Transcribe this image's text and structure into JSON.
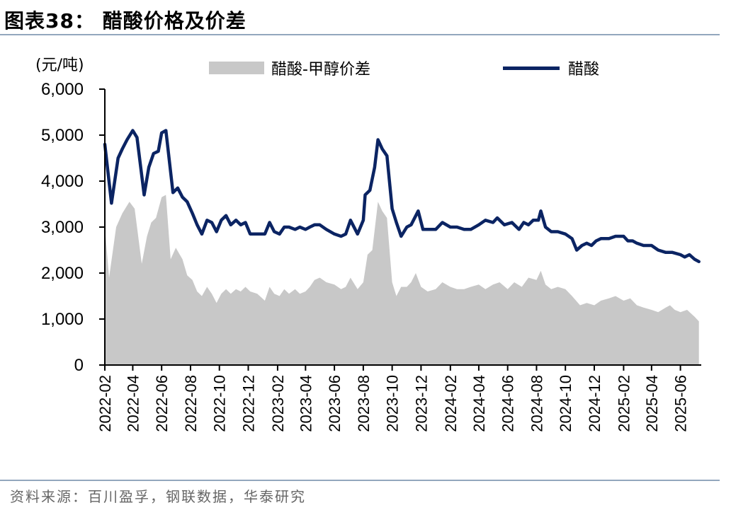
{
  "header": {
    "title": "图表38：  醋酸价格及价差"
  },
  "footer": {
    "source": "资料来源：百川盈孚，钢联数据，华泰研究"
  },
  "colors": {
    "line": "#0b2463",
    "area": "#c8c8c8",
    "rule": "#93a7bd"
  },
  "chart_data": {
    "type": "line",
    "ylabel": "(元/吨)",
    "ylim": [
      0,
      6000
    ],
    "y_ticks": [
      "0",
      "1,000",
      "2,000",
      "3,000",
      "4,000",
      "5,000",
      "6,000"
    ],
    "x_ticks": [
      "2022-02",
      "2022-04",
      "2022-06",
      "2022-08",
      "2022-10",
      "2022-12",
      "2023-02",
      "2023-04",
      "2023-06",
      "2023-08",
      "2023-10",
      "2023-12",
      "2024-02",
      "2024-04",
      "2024-06",
      "2024-08",
      "2024-10",
      "2024-12",
      "2025-02",
      "2025-04",
      "2025-06"
    ],
    "x_start": "2022-02",
    "legend_position": "top",
    "series": [
      {
        "name": "醋酸-甲醇价差",
        "kind": "area",
        "color": "#c8c8c8",
        "points": [
          [
            "2022-02",
            3000
          ],
          [
            "2022-02-10",
            1900
          ],
          [
            "2022-02-25",
            3000
          ],
          [
            "2022-03-10",
            3300
          ],
          [
            "2022-03-25",
            3550
          ],
          [
            "2022-04-05",
            3400
          ],
          [
            "2022-04-20",
            2200
          ],
          [
            "2022-05-01",
            2800
          ],
          [
            "2022-05-10",
            3100
          ],
          [
            "2022-05-20",
            3200
          ],
          [
            "2022-06-01",
            3650
          ],
          [
            "2022-06-10",
            3700
          ],
          [
            "2022-06-20",
            2300
          ],
          [
            "2022-07-01",
            2550
          ],
          [
            "2022-07-15",
            2300
          ],
          [
            "2022-07-25",
            1950
          ],
          [
            "2022-08-05",
            1850
          ],
          [
            "2022-08-15",
            1600
          ],
          [
            "2022-08-25",
            1500
          ],
          [
            "2022-09-05",
            1700
          ],
          [
            "2022-09-15",
            1550
          ],
          [
            "2022-09-25",
            1350
          ],
          [
            "2022-10-05",
            1550
          ],
          [
            "2022-10-15",
            1650
          ],
          [
            "2022-10-25",
            1550
          ],
          [
            "2022-11-05",
            1650
          ],
          [
            "2022-11-15",
            1600
          ],
          [
            "2022-11-25",
            1700
          ],
          [
            "2022-12-05",
            1600
          ],
          [
            "2022-12-20",
            1550
          ],
          [
            "2023-01-05",
            1400
          ],
          [
            "2023-01-15",
            1700
          ],
          [
            "2023-01-25",
            1550
          ],
          [
            "2023-02-05",
            1500
          ],
          [
            "2023-02-15",
            1650
          ],
          [
            "2023-02-25",
            1550
          ],
          [
            "2023-03-10",
            1650
          ],
          [
            "2023-03-20",
            1550
          ],
          [
            "2023-04-01",
            1600
          ],
          [
            "2023-04-10",
            1700
          ],
          [
            "2023-04-20",
            1850
          ],
          [
            "2023-05-01",
            1900
          ],
          [
            "2023-05-15",
            1800
          ],
          [
            "2023-06-01",
            1750
          ],
          [
            "2023-06-15",
            1650
          ],
          [
            "2023-06-25",
            1700
          ],
          [
            "2023-07-05",
            1900
          ],
          [
            "2023-07-20",
            1650
          ],
          [
            "2023-08-01",
            1800
          ],
          [
            "2023-08-10",
            2400
          ],
          [
            "2023-08-20",
            2500
          ],
          [
            "2023-09-01",
            3550
          ],
          [
            "2023-09-10",
            3350
          ],
          [
            "2023-09-20",
            3200
          ],
          [
            "2023-10-01",
            1800
          ],
          [
            "2023-10-10",
            1500
          ],
          [
            "2023-10-20",
            1700
          ],
          [
            "2023-11-01",
            1700
          ],
          [
            "2023-11-10",
            1800
          ],
          [
            "2023-11-20",
            2000
          ],
          [
            "2023-12-01",
            1700
          ],
          [
            "2023-12-15",
            1600
          ],
          [
            "2024-01-01",
            1650
          ],
          [
            "2024-01-15",
            1800
          ],
          [
            "2024-02-01",
            1700
          ],
          [
            "2024-02-15",
            1650
          ],
          [
            "2024-03-01",
            1650
          ],
          [
            "2024-03-15",
            1700
          ],
          [
            "2024-04-01",
            1750
          ],
          [
            "2024-04-15",
            1650
          ],
          [
            "2024-05-01",
            1750
          ],
          [
            "2024-05-15",
            1800
          ],
          [
            "2024-06-01",
            1650
          ],
          [
            "2024-06-15",
            1800
          ],
          [
            "2024-07-01",
            1700
          ],
          [
            "2024-07-15",
            1900
          ],
          [
            "2024-08-01",
            1850
          ],
          [
            "2024-08-10",
            2050
          ],
          [
            "2024-08-20",
            1750
          ],
          [
            "2024-09-01",
            1650
          ],
          [
            "2024-09-15",
            1700
          ],
          [
            "2024-10-01",
            1650
          ],
          [
            "2024-10-15",
            1500
          ],
          [
            "2024-11-01",
            1300
          ],
          [
            "2024-11-15",
            1350
          ],
          [
            "2024-12-01",
            1300
          ],
          [
            "2024-12-15",
            1400
          ],
          [
            "2025-01-01",
            1450
          ],
          [
            "2025-01-15",
            1500
          ],
          [
            "2025-02-01",
            1400
          ],
          [
            "2025-02-15",
            1450
          ],
          [
            "2025-03-01",
            1300
          ],
          [
            "2025-03-15",
            1250
          ],
          [
            "2025-04-01",
            1200
          ],
          [
            "2025-04-15",
            1150
          ],
          [
            "2025-05-01",
            1250
          ],
          [
            "2025-05-10",
            1300
          ],
          [
            "2025-05-20",
            1200
          ],
          [
            "2025-06-01",
            1150
          ],
          [
            "2025-06-15",
            1200
          ],
          [
            "2025-07-01",
            1050
          ],
          [
            "2025-07-10",
            950
          ]
        ]
      },
      {
        "name": "醋酸",
        "kind": "line",
        "color": "#0b2463",
        "points": [
          [
            "2022-02",
            4800
          ],
          [
            "2022-02-15",
            3520
          ],
          [
            "2022-03-01",
            4500
          ],
          [
            "2022-03-10",
            4700
          ],
          [
            "2022-03-20",
            4900
          ],
          [
            "2022-04-01",
            5100
          ],
          [
            "2022-04-10",
            4950
          ],
          [
            "2022-04-25",
            3700
          ],
          [
            "2022-05-05",
            4300
          ],
          [
            "2022-05-15",
            4600
          ],
          [
            "2022-05-25",
            4650
          ],
          [
            "2022-06-01",
            5050
          ],
          [
            "2022-06-10",
            5100
          ],
          [
            "2022-06-25",
            3750
          ],
          [
            "2022-07-05",
            3850
          ],
          [
            "2022-07-15",
            3650
          ],
          [
            "2022-07-25",
            3550
          ],
          [
            "2022-08-05",
            3300
          ],
          [
            "2022-08-15",
            3050
          ],
          [
            "2022-08-25",
            2850
          ],
          [
            "2022-09-05",
            3150
          ],
          [
            "2022-09-15",
            3100
          ],
          [
            "2022-09-25",
            2900
          ],
          [
            "2022-10-05",
            3150
          ],
          [
            "2022-10-15",
            3250
          ],
          [
            "2022-10-25",
            3050
          ],
          [
            "2022-11-05",
            3150
          ],
          [
            "2022-11-15",
            3050
          ],
          [
            "2022-11-25",
            3100
          ],
          [
            "2022-12-05",
            2850
          ],
          [
            "2022-12-20",
            2850
          ],
          [
            "2023-01-05",
            2850
          ],
          [
            "2023-01-15",
            3100
          ],
          [
            "2023-01-25",
            2900
          ],
          [
            "2023-02-05",
            2850
          ],
          [
            "2023-02-15",
            3000
          ],
          [
            "2023-02-25",
            3000
          ],
          [
            "2023-03-10",
            2950
          ],
          [
            "2023-03-20",
            3000
          ],
          [
            "2023-04-01",
            2950
          ],
          [
            "2023-04-10",
            3000
          ],
          [
            "2023-04-20",
            3050
          ],
          [
            "2023-05-01",
            3050
          ],
          [
            "2023-05-15",
            2950
          ],
          [
            "2023-06-01",
            2850
          ],
          [
            "2023-06-15",
            2800
          ],
          [
            "2023-06-25",
            2850
          ],
          [
            "2023-07-05",
            3150
          ],
          [
            "2023-07-20",
            2850
          ],
          [
            "2023-08-01",
            3150
          ],
          [
            "2023-08-05",
            3700
          ],
          [
            "2023-08-15",
            3800
          ],
          [
            "2023-08-25",
            4300
          ],
          [
            "2023-09-01",
            4900
          ],
          [
            "2023-09-10",
            4700
          ],
          [
            "2023-09-20",
            4550
          ],
          [
            "2023-10-01",
            3400
          ],
          [
            "2023-10-10",
            3100
          ],
          [
            "2023-10-20",
            2800
          ],
          [
            "2023-11-01",
            3000
          ],
          [
            "2023-11-10",
            3050
          ],
          [
            "2023-11-25",
            3350
          ],
          [
            "2023-12-05",
            2950
          ],
          [
            "2023-12-15",
            2950
          ],
          [
            "2024-01-01",
            2950
          ],
          [
            "2024-01-15",
            3100
          ],
          [
            "2024-02-01",
            3000
          ],
          [
            "2024-02-15",
            3000
          ],
          [
            "2024-03-01",
            2950
          ],
          [
            "2024-03-15",
            2950
          ],
          [
            "2024-04-01",
            3050
          ],
          [
            "2024-04-15",
            3150
          ],
          [
            "2024-05-01",
            3100
          ],
          [
            "2024-05-10",
            3200
          ],
          [
            "2024-05-25",
            3050
          ],
          [
            "2024-06-10",
            3100
          ],
          [
            "2024-06-25",
            2950
          ],
          [
            "2024-07-05",
            3100
          ],
          [
            "2024-07-15",
            3050
          ],
          [
            "2024-07-25",
            3150
          ],
          [
            "2024-08-05",
            3150
          ],
          [
            "2024-08-10",
            3350
          ],
          [
            "2024-08-20",
            3000
          ],
          [
            "2024-09-01",
            2900
          ],
          [
            "2024-09-15",
            2900
          ],
          [
            "2024-10-01",
            2850
          ],
          [
            "2024-10-15",
            2750
          ],
          [
            "2024-10-25",
            2500
          ],
          [
            "2024-11-05",
            2600
          ],
          [
            "2024-11-15",
            2650
          ],
          [
            "2024-11-25",
            2600
          ],
          [
            "2024-12-05",
            2700
          ],
          [
            "2024-12-15",
            2750
          ],
          [
            "2025-01-01",
            2750
          ],
          [
            "2025-01-15",
            2800
          ],
          [
            "2025-02-01",
            2800
          ],
          [
            "2025-02-10",
            2700
          ],
          [
            "2025-02-20",
            2700
          ],
          [
            "2025-03-01",
            2650
          ],
          [
            "2025-03-15",
            2600
          ],
          [
            "2025-04-01",
            2600
          ],
          [
            "2025-04-15",
            2500
          ],
          [
            "2025-05-01",
            2450
          ],
          [
            "2025-05-15",
            2450
          ],
          [
            "2025-06-01",
            2400
          ],
          [
            "2025-06-10",
            2350
          ],
          [
            "2025-06-20",
            2400
          ],
          [
            "2025-07-01",
            2300
          ],
          [
            "2025-07-10",
            2250
          ]
        ]
      }
    ]
  }
}
